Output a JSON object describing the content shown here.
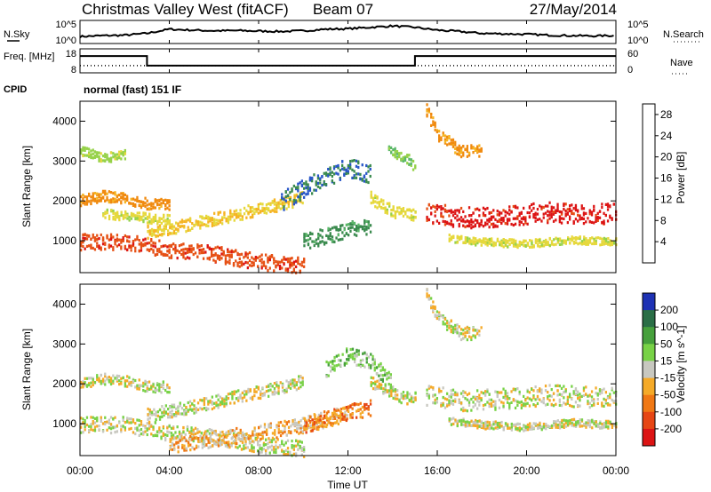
{
  "header": {
    "title": "Christmas Valley West (fitACF)",
    "beam": "Beam 07",
    "date": "27/May/2014"
  },
  "chart_data": [
    {
      "type": "line",
      "name_left": "N.Sky",
      "name_right": "N.Search",
      "left_ticks": [
        "10^5",
        "10^0"
      ],
      "right_ticks": [
        "10^5",
        "10^0"
      ],
      "x_range_hours": [
        0,
        24
      ],
      "series": [
        {
          "label": "N.Sky",
          "x": [
            0,
            1,
            2,
            3,
            4,
            5,
            6,
            7,
            8,
            9,
            10,
            11,
            12,
            13,
            14,
            15,
            16,
            17,
            18,
            19,
            20,
            21,
            22,
            23,
            24
          ],
          "rel_level": [
            0.3,
            0.34,
            0.36,
            0.44,
            0.62,
            0.58,
            0.55,
            0.56,
            0.54,
            0.52,
            0.55,
            0.62,
            0.64,
            0.7,
            0.76,
            0.7,
            0.58,
            0.52,
            0.44,
            0.42,
            0.4,
            0.36,
            0.34,
            0.33,
            0.34
          ]
        }
      ]
    },
    {
      "type": "line",
      "name_left": "Freq. [MHz]",
      "name_right": "Nave",
      "left_ticks": [
        "18",
        "8"
      ],
      "right_ticks": [
        "60",
        "0"
      ],
      "x_range_hours": [
        0,
        24
      ],
      "series": [
        {
          "label": "Freq.",
          "x": [
            0,
            3,
            3,
            15,
            15,
            24
          ],
          "y": [
            15,
            15,
            11,
            11,
            15,
            15
          ]
        },
        {
          "label": "Nave",
          "x": [
            0,
            24
          ],
          "y": [
            18,
            18
          ]
        }
      ]
    },
    {
      "type": "table",
      "label": "CPID",
      "text": "normal (fast) 151 IF"
    },
    {
      "type": "heatmap",
      "ylabel": "Slant Range [km]",
      "yticks": [
        1000,
        2000,
        3000,
        4000
      ],
      "ylim": [
        200,
        4500
      ],
      "xlim": [
        0,
        24
      ],
      "colorbar": {
        "label": "Power [dB]",
        "ticks": [
          4,
          8,
          12,
          16,
          20,
          24,
          28
        ],
        "range": [
          0,
          30
        ],
        "colors": [
          "#0a28d2",
          "#2856c8",
          "#3a8a4e",
          "#5cb86a",
          "#96d24a",
          "#e6d83c",
          "#f5b423",
          "#f08a0f",
          "#e65014",
          "#dc1414"
        ]
      },
      "bands": [
        {
          "t": [
            0,
            2,
            4,
            6,
            8,
            10
          ],
          "r": [
            1000,
            1000,
            800,
            700,
            500,
            400
          ],
          "w": 250,
          "val": 26
        },
        {
          "t": [
            0,
            1,
            2,
            3,
            4
          ],
          "r": [
            2050,
            2150,
            2100,
            1950,
            1950
          ],
          "w": 170,
          "val": 22
        },
        {
          "t": [
            3,
            5,
            7,
            9,
            10
          ],
          "r": [
            1250,
            1450,
            1700,
            1950,
            2100
          ],
          "w": 200,
          "val": 18
        },
        {
          "t": [
            1,
            2,
            3,
            4
          ],
          "r": [
            1700,
            1650,
            1600,
            1550
          ],
          "w": 150,
          "val": 16
        },
        {
          "t": [
            10,
            11,
            12,
            13
          ],
          "r": [
            1000,
            1150,
            1300,
            1400
          ],
          "w": 250,
          "val": 8
        },
        {
          "t": [
            9,
            10,
            11,
            12,
            13
          ],
          "r": [
            2000,
            2350,
            2650,
            2850,
            2700
          ],
          "w": 300,
          "val": 6
        },
        {
          "t": [
            13,
            14,
            15
          ],
          "r": [
            2100,
            1750,
            1650
          ],
          "w": 200,
          "val": 16
        },
        {
          "t": [
            13.8,
            14.5,
            15
          ],
          "r": [
            3300,
            3150,
            2900
          ],
          "w": 180,
          "val": 12
        },
        {
          "t": [
            15.5,
            17,
            19,
            21,
            22.5,
            24
          ],
          "r": [
            1750,
            1600,
            1650,
            1750,
            1700,
            1700
          ],
          "w": 320,
          "val": 28
        },
        {
          "t": [
            15.5,
            16,
            17,
            18
          ],
          "r": [
            4300,
            3700,
            3300,
            3300
          ],
          "w": 200,
          "val": 22
        },
        {
          "t": [
            16.5,
            18,
            20,
            22,
            24
          ],
          "r": [
            1100,
            1000,
            950,
            1050,
            1000
          ],
          "w": 120,
          "val": 16
        },
        {
          "t": [
            0,
            1,
            2
          ],
          "r": [
            3300,
            3100,
            3200
          ],
          "w": 150,
          "val": 14
        }
      ]
    },
    {
      "type": "heatmap",
      "ylabel": "Slant Range [km]",
      "yticks": [
        1000,
        2000,
        3000,
        4000
      ],
      "ylim": [
        200,
        4500
      ],
      "xlim": [
        0,
        24
      ],
      "xticks": [
        "00:00",
        "04:00",
        "08:00",
        "12:00",
        "16:00",
        "20:00",
        "00:00"
      ],
      "xlabel": "Time UT",
      "colorbar": {
        "label": "Velocity [m s^-1]",
        "ticks": [
          "200",
          "100",
          "50",
          "15",
          "-15",
          "-50",
          "-100",
          "-200"
        ],
        "colors": [
          "#1e32b4",
          "#2a6e46",
          "#46a03c",
          "#78d246",
          "#c8c8c0",
          "#f5aa28",
          "#f07814",
          "#e64614",
          "#dc1414"
        ]
      },
      "bands": [
        {
          "t": [
            0,
            2,
            4,
            6,
            8,
            10
          ],
          "r": [
            1000,
            1000,
            800,
            700,
            500,
            400
          ],
          "w": 250,
          "val": 4
        },
        {
          "t": [
            0,
            1,
            2,
            3,
            4
          ],
          "r": [
            2050,
            2150,
            2100,
            1950,
            1950
          ],
          "w": 170,
          "val": 4
        },
        {
          "t": [
            3,
            5,
            7,
            9,
            10
          ],
          "r": [
            1250,
            1450,
            1700,
            1950,
            2100
          ],
          "w": 200,
          "val": 4
        },
        {
          "t": [
            4,
            6,
            8,
            10,
            12
          ],
          "r": [
            500,
            650,
            800,
            1000,
            1300
          ],
          "w": 250,
          "val": 5
        },
        {
          "t": [
            10,
            11,
            12,
            13
          ],
          "r": [
            1000,
            1150,
            1300,
            1450
          ],
          "w": 260,
          "val": 6
        },
        {
          "t": [
            11,
            12,
            13,
            14
          ],
          "r": [
            2400,
            2750,
            2600,
            2000
          ],
          "w": 250,
          "val": 3
        },
        {
          "t": [
            13,
            14,
            15
          ],
          "r": [
            2100,
            1750,
            1650
          ],
          "w": 200,
          "val": 4
        },
        {
          "t": [
            15.5,
            17,
            19,
            21,
            22.5,
            24
          ],
          "r": [
            1750,
            1600,
            1650,
            1750,
            1700,
            1700
          ],
          "w": 320,
          "val": 4
        },
        {
          "t": [
            15.5,
            16,
            17,
            18
          ],
          "r": [
            4300,
            3700,
            3300,
            3300
          ],
          "w": 200,
          "val": 4
        },
        {
          "t": [
            16.5,
            18,
            20,
            22,
            24
          ],
          "r": [
            1100,
            1000,
            950,
            1050,
            1000
          ],
          "w": 120,
          "val": 4
        }
      ]
    }
  ]
}
